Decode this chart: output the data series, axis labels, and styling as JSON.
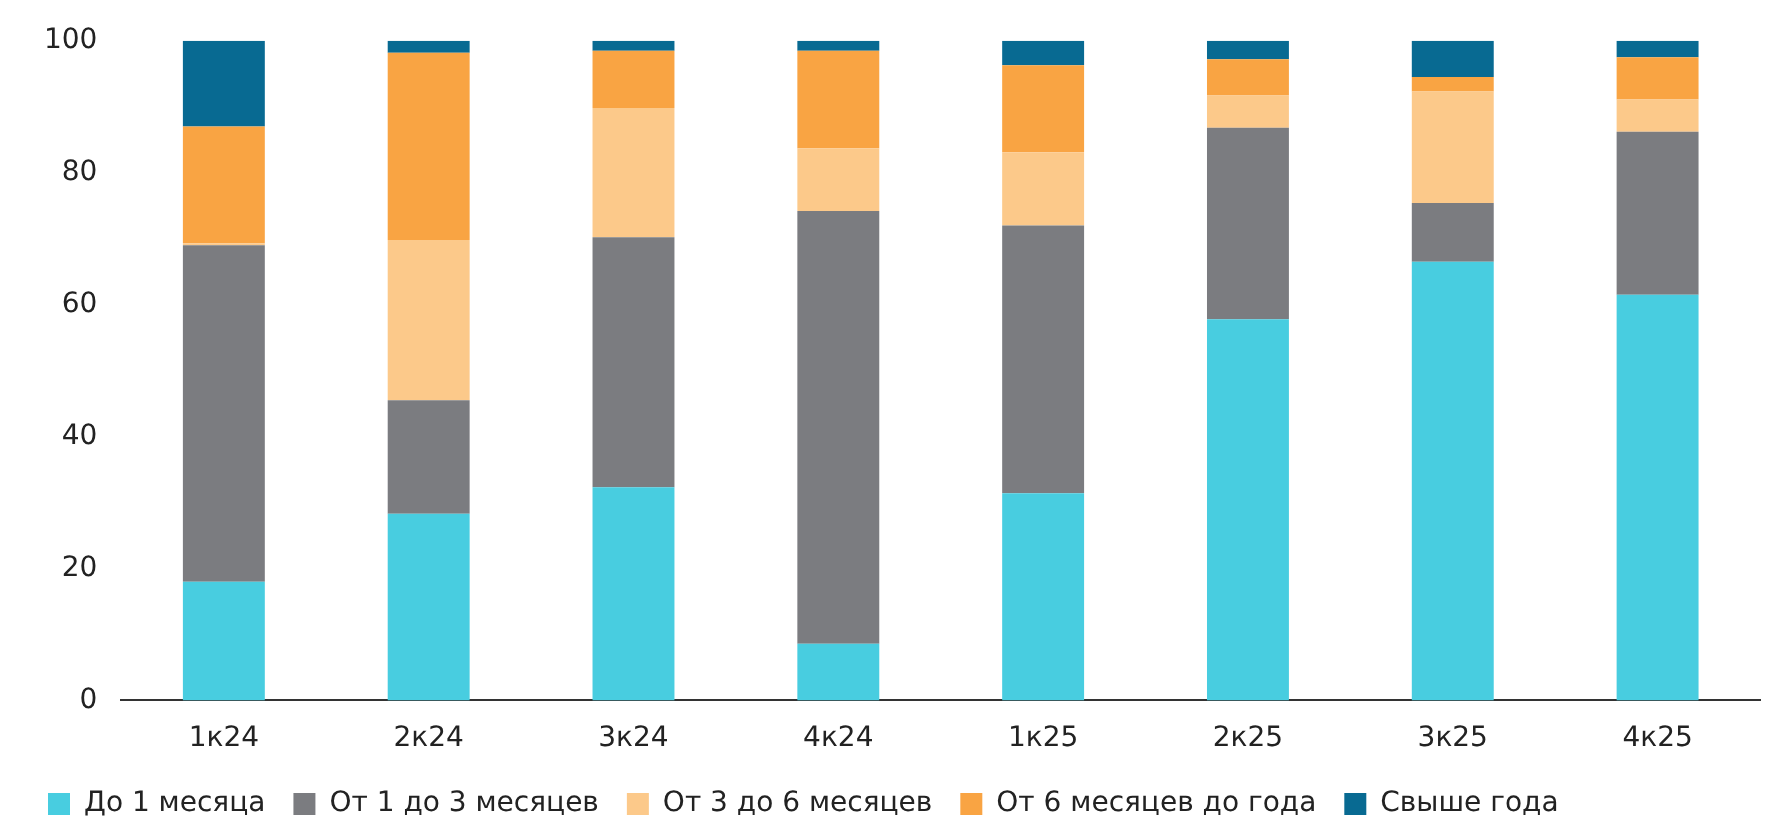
{
  "chart_data": {
    "type": "bar",
    "stacked": true,
    "categories": [
      "1к24",
      "2к24",
      "3к24",
      "4к24",
      "1к25",
      "2к25",
      "3к25",
      "4к25"
    ],
    "series": [
      {
        "name": "До 1 месяца",
        "color": "#48cde0",
        "values": [
          18,
          28.3,
          32.3,
          8.6,
          31.4,
          57.8,
          66.5,
          61.5
        ]
      },
      {
        "name": "От 1 до 3 месяцев",
        "color": "#7b7c80",
        "values": [
          51,
          17.2,
          37.9,
          65.6,
          40.6,
          29,
          8.9,
          24.7
        ]
      },
      {
        "name": "От 3 до 6 месяцев",
        "color": "#fcc98a",
        "values": [
          0.3,
          24.3,
          19.6,
          9.5,
          11.1,
          4.9,
          16.9,
          4.9
        ]
      },
      {
        "name": "От 6 месяцев до года",
        "color": "#f9a443",
        "values": [
          17.7,
          28.4,
          8.7,
          14.8,
          13.2,
          5.5,
          2.2,
          6.4
        ]
      },
      {
        "name": "Свыше года",
        "color": "#086a92",
        "values": [
          13,
          1.8,
          1.5,
          1.5,
          3.7,
          2.8,
          5.5,
          2.5
        ]
      }
    ],
    "ylim": [
      0,
      100
    ],
    "yticks": [
      0,
      20,
      40,
      60,
      80,
      100
    ],
    "grid": false,
    "legend": "bottom"
  }
}
